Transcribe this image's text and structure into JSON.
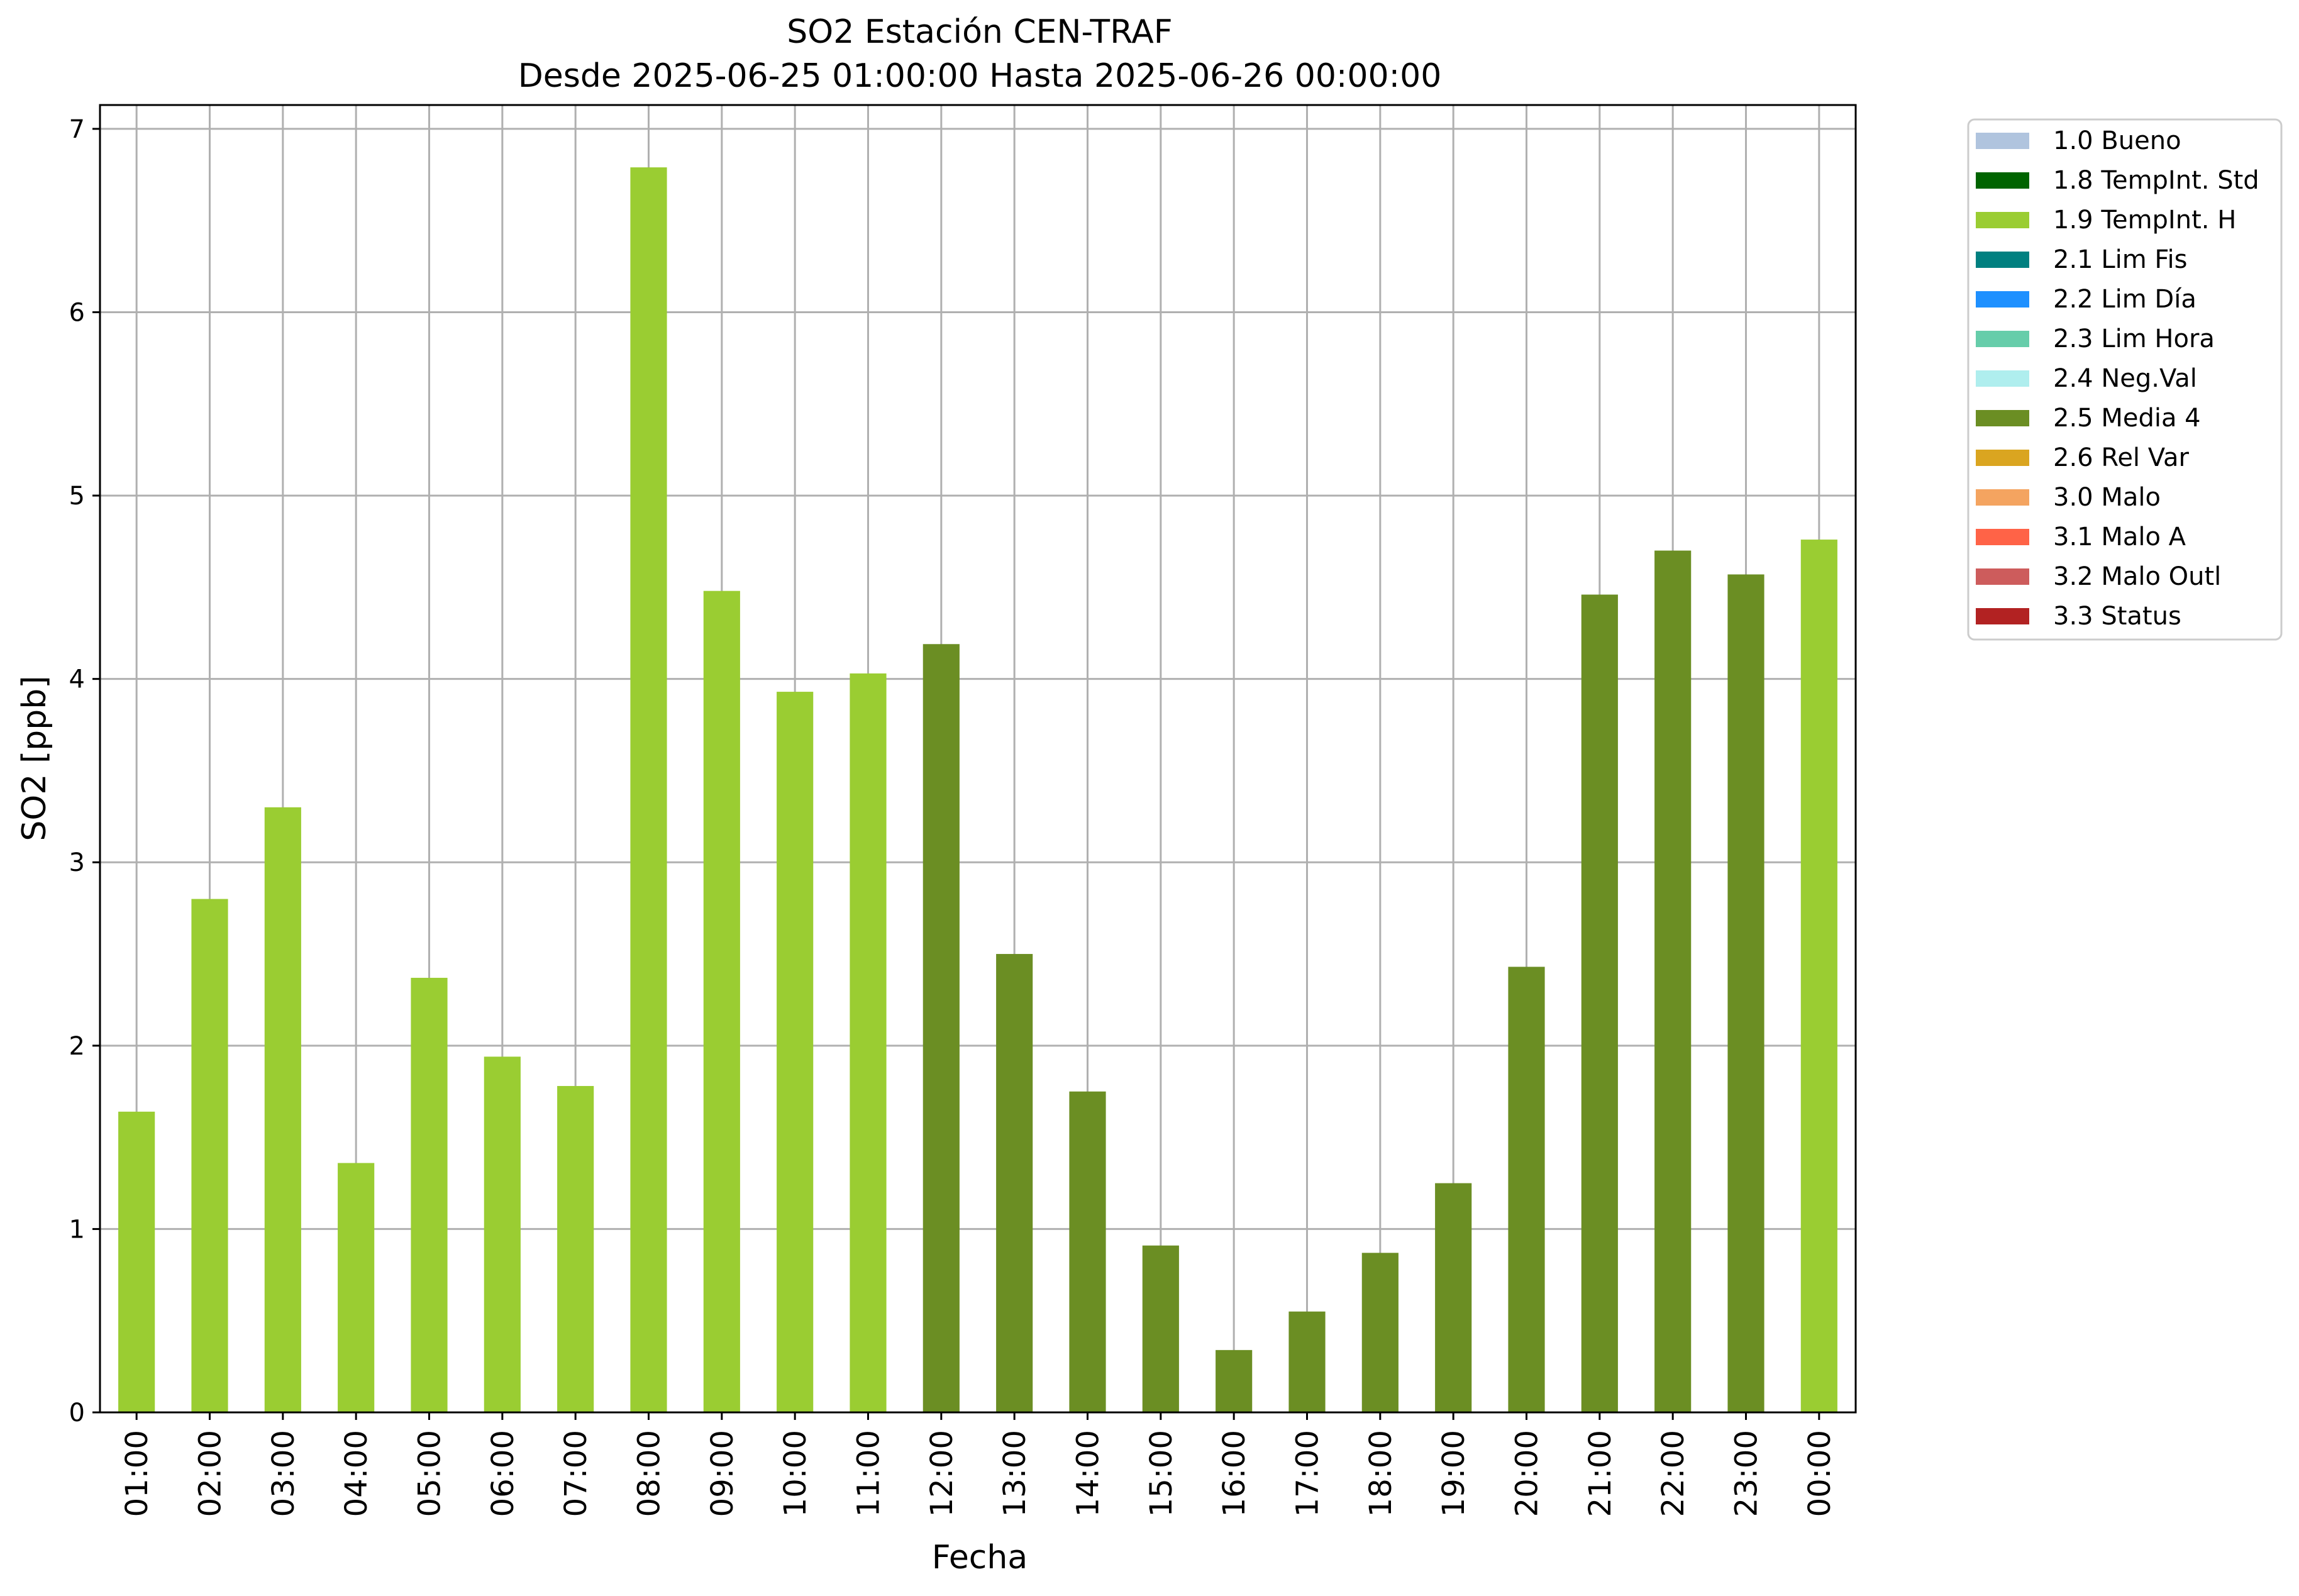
{
  "chart_data": {
    "type": "bar",
    "title": "SO2 Estación CEN-TRAF",
    "subtitle": "Desde 2025-06-25 01:00:00 Hasta 2025-06-26 00:00:00",
    "xlabel": "Fecha",
    "ylabel": "SO2 [ppb]",
    "ylim": [
      0,
      7.13
    ],
    "yticks": [
      0,
      1,
      2,
      3,
      4,
      5,
      6,
      7
    ],
    "grid": true,
    "legend_position": "outside-right-top",
    "categories": [
      "01:00",
      "02:00",
      "03:00",
      "04:00",
      "05:00",
      "06:00",
      "07:00",
      "08:00",
      "09:00",
      "10:00",
      "11:00",
      "12:00",
      "13:00",
      "14:00",
      "15:00",
      "16:00",
      "17:00",
      "18:00",
      "19:00",
      "20:00",
      "21:00",
      "22:00",
      "23:00",
      "00:00"
    ],
    "values": [
      1.64,
      2.8,
      3.3,
      1.36,
      2.37,
      1.94,
      1.78,
      6.79,
      4.48,
      3.93,
      4.03,
      4.19,
      2.5,
      1.75,
      0.91,
      0.34,
      0.55,
      0.87,
      1.25,
      2.43,
      4.46,
      4.7,
      4.57,
      4.76
    ],
    "bar_flags": [
      "1.9",
      "1.9",
      "1.9",
      "1.9",
      "1.9",
      "1.9",
      "1.9",
      "1.9",
      "1.9",
      "1.9",
      "1.9",
      "2.5",
      "2.5",
      "2.5",
      "2.5",
      "2.5",
      "2.5",
      "2.5",
      "2.5",
      "2.5",
      "2.5",
      "2.5",
      "2.5",
      "1.9"
    ],
    "legend": [
      {
        "code": "1.0",
        "label": "1.0 Bueno",
        "color": "#b0c4de"
      },
      {
        "code": "1.8",
        "label": "1.8 TempInt. Std",
        "color": "#006400"
      },
      {
        "code": "1.9",
        "label": "1.9 TempInt. H",
        "color": "#9acd32"
      },
      {
        "code": "2.1",
        "label": "2.1 Lim Fis",
        "color": "#008080"
      },
      {
        "code": "2.2",
        "label": "2.2 Lim Día",
        "color": "#1e90ff"
      },
      {
        "code": "2.3",
        "label": "2.3 Lim Hora",
        "color": "#66cdaa"
      },
      {
        "code": "2.4",
        "label": "2.4 Neg.Val",
        "color": "#afeeee"
      },
      {
        "code": "2.5",
        "label": "2.5 Media 4",
        "color": "#6b8e23"
      },
      {
        "code": "2.6",
        "label": "2.6 Rel Var",
        "color": "#daa520"
      },
      {
        "code": "3.0",
        "label": "3.0 Malo",
        "color": "#f4a460"
      },
      {
        "code": "3.1",
        "label": "3.1 Malo A",
        "color": "#ff6347"
      },
      {
        "code": "3.2",
        "label": "3.2 Malo Outl",
        "color": "#cd5c5c"
      },
      {
        "code": "3.3",
        "label": "3.3 Status",
        "color": "#b22222"
      }
    ]
  }
}
